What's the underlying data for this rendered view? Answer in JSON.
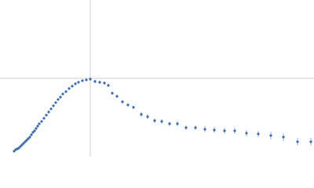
{
  "chart_data": {
    "type": "scatter",
    "xlim": [
      0,
      4
    ],
    "ylim": [
      0,
      2
    ],
    "xticks": [
      1.15
    ],
    "yticks": [
      1
    ],
    "grid": true,
    "color": "#3a6bb5",
    "x": [
      0.18,
      0.2,
      0.22,
      0.24,
      0.26,
      0.28,
      0.3,
      0.32,
      0.34,
      0.36,
      0.38,
      0.4,
      0.42,
      0.44,
      0.46,
      0.48,
      0.5,
      0.53,
      0.56,
      0.59,
      0.62,
      0.65,
      0.68,
      0.71,
      0.74,
      0.77,
      0.8,
      0.84,
      0.88,
      0.92,
      0.96,
      1.0,
      1.05,
      1.1,
      1.15,
      1.21,
      1.27,
      1.33,
      1.38,
      1.43,
      1.49,
      1.56,
      1.63,
      1.7,
      1.8,
      1.88,
      1.97,
      2.06,
      2.16,
      2.26,
      2.37,
      2.49,
      2.61,
      2.73,
      2.86,
      2.99,
      3.14,
      3.29,
      3.45,
      3.61,
      3.79,
      3.96
    ],
    "values": [
      0.07,
      0.09,
      0.1,
      0.11,
      0.13,
      0.15,
      0.17,
      0.19,
      0.21,
      0.23,
      0.25,
      0.28,
      0.31,
      0.33,
      0.36,
      0.39,
      0.42,
      0.45,
      0.49,
      0.53,
      0.57,
      0.61,
      0.65,
      0.69,
      0.73,
      0.76,
      0.8,
      0.83,
      0.87,
      0.9,
      0.93,
      0.95,
      0.97,
      0.98,
      0.99,
      0.96,
      0.95,
      0.94,
      0.91,
      0.81,
      0.77,
      0.7,
      0.66,
      0.63,
      0.54,
      0.51,
      0.46,
      0.45,
      0.42,
      0.42,
      0.37,
      0.37,
      0.35,
      0.34,
      0.33,
      0.33,
      0.3,
      0.29,
      0.27,
      0.25,
      0.19,
      0.19
    ],
    "errors": [
      0.01,
      0.01,
      0.01,
      0.01,
      0.01,
      0.01,
      0.01,
      0.01,
      0.01,
      0.01,
      0.01,
      0.01,
      0.01,
      0.01,
      0.01,
      0.01,
      0.01,
      0.01,
      0.01,
      0.01,
      0.01,
      0.01,
      0.01,
      0.01,
      0.01,
      0.01,
      0.01,
      0.01,
      0.01,
      0.01,
      0.01,
      0.01,
      0.01,
      0.01,
      0.02,
      0.02,
      0.02,
      0.02,
      0.02,
      0.02,
      0.02,
      0.02,
      0.02,
      0.02,
      0.03,
      0.03,
      0.03,
      0.03,
      0.03,
      0.03,
      0.03,
      0.03,
      0.04,
      0.04,
      0.04,
      0.04,
      0.04,
      0.04,
      0.05,
      0.05,
      0.05,
      0.05
    ]
  }
}
